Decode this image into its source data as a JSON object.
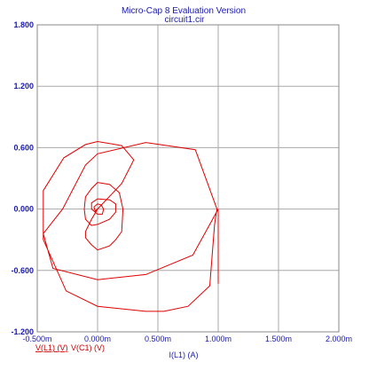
{
  "chart_data": {
    "type": "line",
    "title": "Micro-Cap 8 Evaluation Version",
    "subtitle": "circuit1.cir",
    "xlabel": "I(L1) (A)",
    "xlim": [
      -0.0005,
      0.002
    ],
    "ylim": [
      -1.2,
      1.8
    ],
    "x_ticks": [
      "-0.500m",
      "0.000m",
      "0.500m",
      "1.000m",
      "1.500m",
      "2.000m"
    ],
    "y_ticks": [
      "1.800",
      "1.200",
      "0.600",
      "0.000",
      "-0.600",
      "-1.200"
    ],
    "grid": true,
    "legend_entries": [
      "V(L1) (V)",
      "V(C1) (V)"
    ],
    "series": [
      {
        "name": "V(L1) (V)",
        "color": "#e00000",
        "x": [
          0.001,
          0.001,
          0.00093,
          0.00079,
          0.0004,
          0.0,
          -0.00037,
          -0.00045,
          -0.00029,
          -0.0001,
          0.0,
          0.0004,
          0.00081,
          0.00099,
          0.00097,
          0.00093,
          0.00075,
          0.00055,
          0.0004,
          0.0,
          -0.00026,
          -0.00045,
          -0.00045,
          -0.00028,
          -0.0001,
          0.0,
          0.0002,
          0.0003,
          0.0002,
          0.0,
          -5e-05,
          -0.0001,
          -0.0001,
          -5e-05,
          0.0,
          0.0001,
          0.00015,
          0.0002,
          0.00021,
          0.00018,
          0.0001,
          0.0,
          -5e-05,
          -0.0001,
          -0.00011,
          -0.0001,
          -5e-05,
          0.0,
          0.0001,
          0.00015,
          0.00015,
          0.0001,
          0.0,
          -5e-05,
          -5e-05,
          0.0,
          4e-05,
          5e-05,
          3e-05,
          0.0,
          -3e-05,
          -2e-05,
          0.0
        ],
        "y": [
          -0.73,
          0.0,
          -0.15,
          -0.45,
          -0.64,
          -0.69,
          -0.58,
          -0.24,
          0.0,
          0.43,
          0.54,
          0.65,
          0.58,
          0.0,
          -0.15,
          -0.75,
          -0.95,
          -1.0,
          -1.0,
          -0.95,
          -0.8,
          -0.3,
          0.18,
          0.5,
          0.63,
          0.66,
          0.62,
          0.48,
          0.25,
          0.0,
          -0.1,
          -0.22,
          -0.28,
          -0.35,
          -0.4,
          -0.36,
          -0.3,
          -0.22,
          0.0,
          0.16,
          0.24,
          0.26,
          0.2,
          0.12,
          0.0,
          -0.1,
          -0.16,
          -0.15,
          -0.1,
          -0.03,
          0.05,
          0.09,
          0.1,
          0.06,
          0.0,
          -0.05,
          -0.05,
          0.0,
          0.04,
          0.05,
          0.02,
          -0.02,
          0.0
        ]
      }
    ]
  }
}
